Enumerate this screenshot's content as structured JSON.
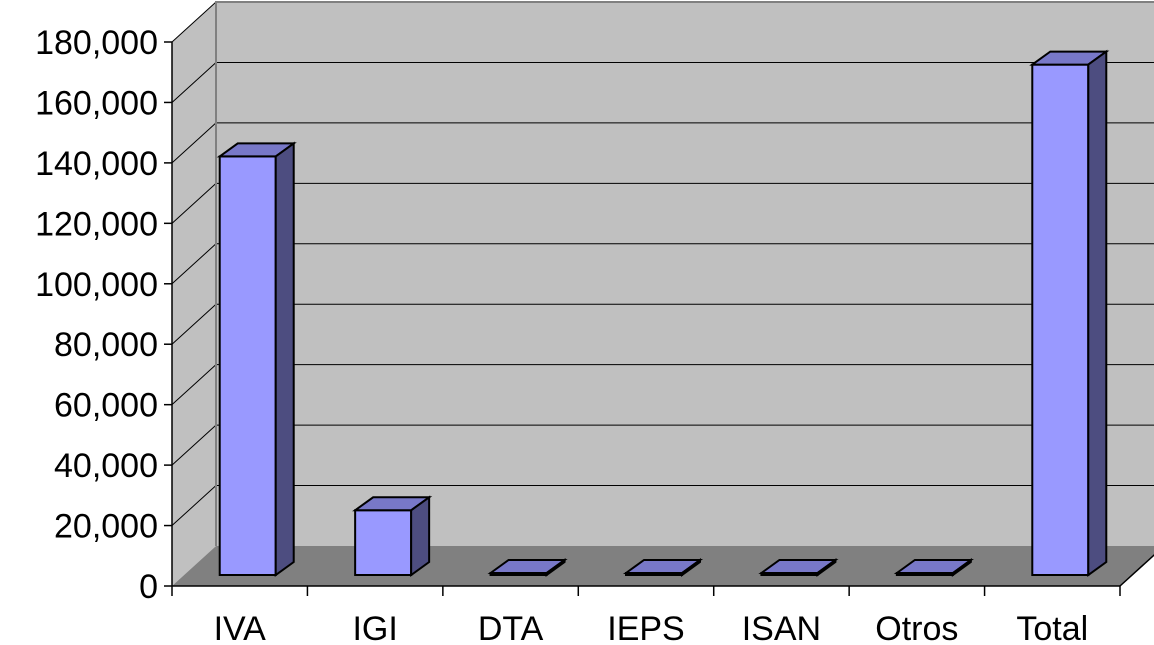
{
  "chart_data": {
    "type": "bar",
    "categories": [
      "IVA",
      "IGI",
      "DTA",
      "IEPS",
      "ISAN",
      "Otros",
      "Total"
    ],
    "values": [
      145000,
      25500,
      0,
      600,
      0,
      1800,
      176000
    ],
    "ylim": [
      0,
      180000
    ],
    "yticks": [
      0,
      20000,
      40000,
      60000,
      80000,
      100000,
      120000,
      140000,
      160000,
      180000
    ],
    "ytick_labels": [
      "0",
      "20,000",
      "40,000",
      "60,000",
      "80,000",
      "100,000",
      "120,000",
      "140,000",
      "160,000",
      "180,000"
    ],
    "grid": true,
    "legend": "none",
    "colors": {
      "bar_front": "#9999ff",
      "bar_top": "#7878c8",
      "bar_side": "#4d4d80",
      "wall": "#c0c0c0",
      "floor": "#808080"
    }
  }
}
